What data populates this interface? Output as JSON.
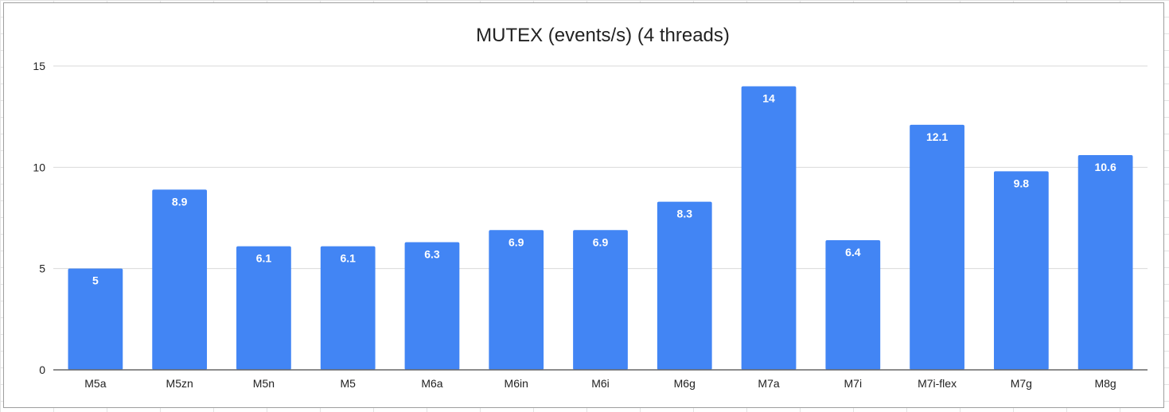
{
  "chart_data": {
    "type": "bar",
    "title": "MUTEX (events/s) (4 threads)",
    "xlabel": "",
    "ylabel": "",
    "categories": [
      "M5a",
      "M5zn",
      "M5n",
      "M5",
      "M6a",
      "M6in",
      "M6i",
      "M6g",
      "M7a",
      "M7i",
      "M7i-flex",
      "M7g",
      "M8g"
    ],
    "values": [
      5,
      8.9,
      6.1,
      6.1,
      6.3,
      6.9,
      6.9,
      8.3,
      14,
      6.4,
      12.1,
      9.8,
      10.6
    ],
    "data_labels": [
      "5",
      "8.9",
      "6.1",
      "6.1",
      "6.3",
      "6.9",
      "6.9",
      "8.3",
      "14",
      "6.4",
      "12.1",
      "9.8",
      "10.6"
    ],
    "ylim": [
      0,
      15
    ],
    "yticks": [
      0,
      5,
      10,
      15
    ],
    "grid": true,
    "legend": "none",
    "bar_color": "#4285f4"
  }
}
